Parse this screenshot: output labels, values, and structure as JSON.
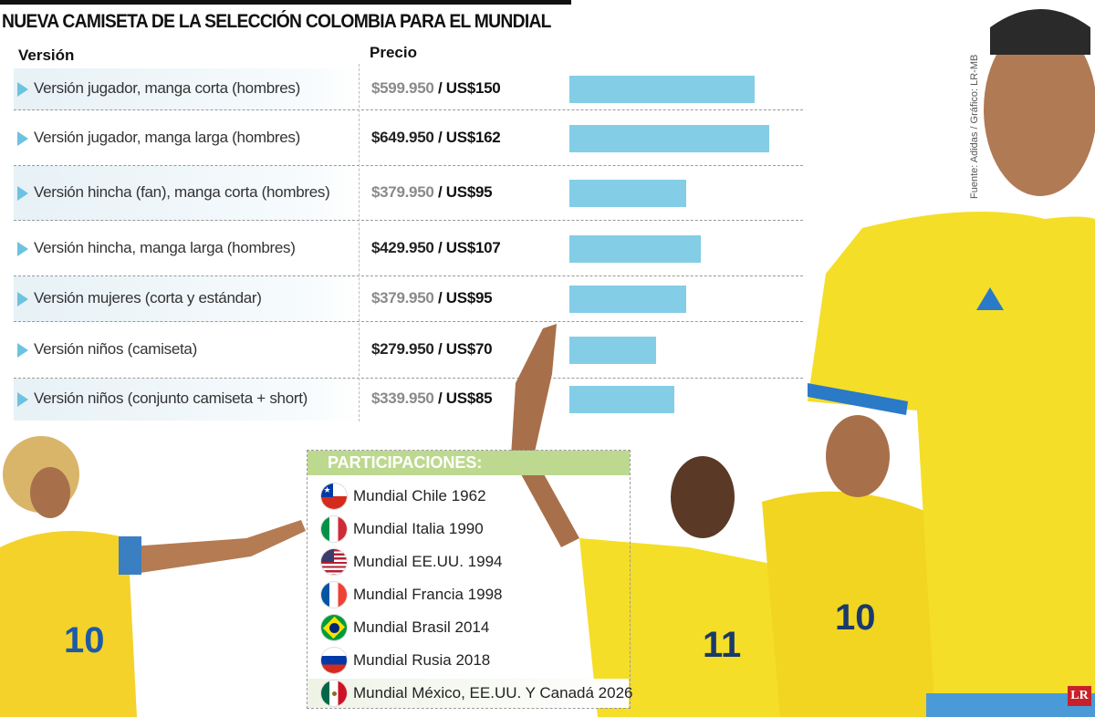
{
  "title": "NUEVA CAMISETA DE LA SELECCIÓN COLOMBIA PARA EL MUNDIAL",
  "headers": {
    "version": "Versión",
    "price": "Precio"
  },
  "source": "Fuente: Adidas / Gráfico: LR-MB",
  "logo": "LR",
  "colors": {
    "bar": "#84cde6",
    "marker": "#6cc3e0",
    "participations_header": "#bcd98f"
  },
  "chart_data": {
    "type": "bar",
    "orientation": "horizontal",
    "categories": [
      "Versión jugador, manga corta (hombres)",
      "Versión jugador, manga larga (hombres)",
      "Versión hincha (fan), manga corta (hombres)",
      "Versión hincha, manga larga (hombres)",
      "Versión mujeres (corta y estándar)",
      "Versión niños (camiseta)",
      "Versión niños (conjunto camiseta + short)"
    ],
    "values": [
      150,
      162,
      95,
      107,
      95,
      70,
      85
    ],
    "price_cop": [
      "$599.950",
      "$649.950",
      "$379.950",
      "$429.950",
      "$379.950",
      "$279.950",
      "$339.950"
    ],
    "price_usd": [
      "/ US$150",
      "/ US$162",
      "/ US$95",
      "/ US$107",
      "/ US$95",
      "/ US$70",
      "/ US$85"
    ],
    "unit": "US$",
    "grid": false
  },
  "participations": {
    "title": "PARTICIPACIONES:",
    "items": [
      {
        "label": "Mundial Chile 1962",
        "flag": "chile-flag-icon"
      },
      {
        "label": "Mundial Italia 1990",
        "flag": "italy-flag-icon"
      },
      {
        "label": "Mundial EE.UU. 1994",
        "flag": "usa-flag-icon"
      },
      {
        "label": "Mundial Francia 1998",
        "flag": "france-flag-icon"
      },
      {
        "label": "Mundial Brasil 2014",
        "flag": "brazil-flag-icon"
      },
      {
        "label": "Mundial Rusia 2018",
        "flag": "russia-flag-icon"
      },
      {
        "label": "Mundial México, EE.UU. Y Canadá 2026",
        "flag": "mexico-flag-icon"
      }
    ]
  }
}
